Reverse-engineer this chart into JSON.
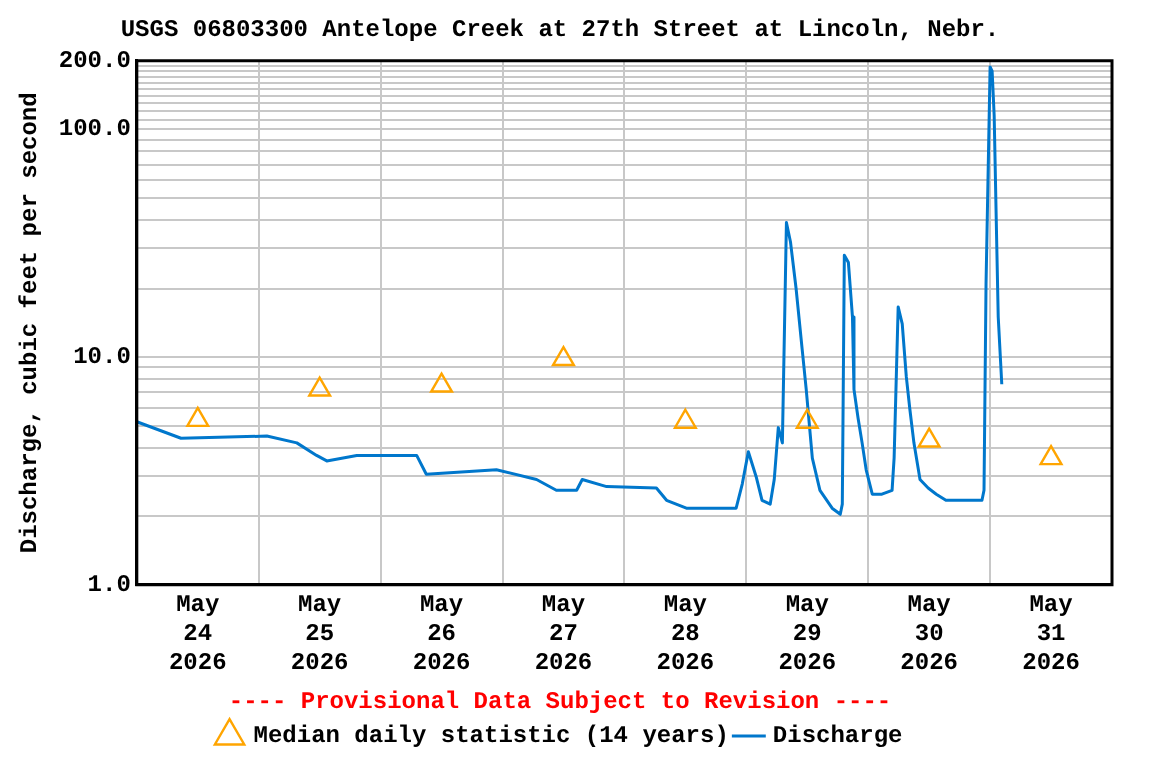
{
  "chart_data": {
    "type": "line",
    "title": "USGS 06803300 Antelope Creek at 27th Street at Lincoln, Nebr.",
    "ylabel": "Discharge, cubic feet per second",
    "annotations": [
      "---- Provisional Data Subject to Revision ----"
    ],
    "xlim": [
      "2026-05-24T00:00",
      "2026-06-01T00:00"
    ],
    "xticks": [
      {
        "value": "2026-05-24T00:00",
        "label": null
      },
      {
        "value": "2026-05-24T12:00",
        "label": "May\n24\n2026"
      },
      {
        "value": "2026-05-25T00:00",
        "label": null
      },
      {
        "value": "2026-05-25T12:00",
        "label": "May\n25\n2026"
      },
      {
        "value": "2026-05-26T00:00",
        "label": null
      },
      {
        "value": "2026-05-26T12:00",
        "label": "May\n26\n2026"
      },
      {
        "value": "2026-05-27T00:00",
        "label": null
      },
      {
        "value": "2026-05-27T12:00",
        "label": "May\n27\n2026"
      },
      {
        "value": "2026-05-28T00:00",
        "label": null
      },
      {
        "value": "2026-05-28T12:00",
        "label": "May\n28\n2026"
      },
      {
        "value": "2026-05-29T00:00",
        "label": null
      },
      {
        "value": "2026-05-29T12:00",
        "label": "May\n29\n2026"
      },
      {
        "value": "2026-05-30T00:00",
        "label": null
      },
      {
        "value": "2026-05-30T12:00",
        "label": "May\n30\n2026"
      },
      {
        "value": "2026-05-31T00:00",
        "label": null
      },
      {
        "value": "2026-05-31T12:00",
        "label": "May\n31\n2026"
      },
      {
        "value": "2026-06-01T00:00",
        "label": null
      }
    ],
    "ylim": [
      1,
      200
    ],
    "yticks": [
      {
        "value": 1,
        "label": "1.0"
      },
      {
        "value": 2,
        "label": null
      },
      {
        "value": 3,
        "label": null
      },
      {
        "value": 4,
        "label": null
      },
      {
        "value": 5,
        "label": null
      },
      {
        "value": 6,
        "label": null
      },
      {
        "value": 7,
        "label": null
      },
      {
        "value": 8,
        "label": null
      },
      {
        "value": 9,
        "label": null
      },
      {
        "value": 10,
        "label": "10.0"
      },
      {
        "value": 20,
        "label": null
      },
      {
        "value": 30,
        "label": null
      },
      {
        "value": 40,
        "label": null
      },
      {
        "value": 50,
        "label": null
      },
      {
        "value": 60,
        "label": null
      },
      {
        "value": 70,
        "label": null
      },
      {
        "value": 80,
        "label": null
      },
      {
        "value": 90,
        "label": null
      },
      {
        "value": 100,
        "label": "100.0"
      },
      {
        "value": 110,
        "label": null
      },
      {
        "value": 120,
        "label": null
      },
      {
        "value": 130,
        "label": null
      },
      {
        "value": 140,
        "label": null
      },
      {
        "value": 150,
        "label": null
      },
      {
        "value": 160,
        "label": null
      },
      {
        "value": 170,
        "label": null
      },
      {
        "value": 180,
        "label": null
      },
      {
        "value": 190,
        "label": null
      },
      {
        "value": 200,
        "label": "200.0"
      }
    ],
    "log": "y",
    "grid": true,
    "legend": "bottom",
    "series": [
      {
        "name": "Median daily statistic (14 years)",
        "type": "scatter",
        "marker": "triangle",
        "color": "#ffa500",
        "x": [
          "2026-05-24T12:00",
          "2026-05-25T12:00",
          "2026-05-26T12:00",
          "2026-05-27T12:00",
          "2026-05-28T12:00",
          "2026-05-29T12:00",
          "2026-05-30T12:00",
          "2026-05-31T12:00"
        ],
        "values": [
          5.3,
          7.2,
          7.5,
          9.8,
          5.2,
          5.2,
          4.3,
          3.6
        ]
      },
      {
        "name": "Discharge",
        "type": "line",
        "marker": "none",
        "color": "#0077cc",
        "x": [
          "2026-05-24T00:00",
          "2026-05-24T08:42",
          "2026-05-25T01:36",
          "2026-05-25T07:30",
          "2026-05-25T11:24",
          "2026-05-25T13:24",
          "2026-05-25T19:18",
          "2026-05-26T07:06",
          "2026-05-26T09:00",
          "2026-05-26T22:48",
          "2026-05-27T06:42",
          "2026-05-27T10:36",
          "2026-05-27T14:36",
          "2026-05-27T15:42",
          "2026-05-27T20:30",
          "2026-05-28T06:18",
          "2026-05-28T08:18",
          "2026-05-28T12:12",
          "2026-05-28T22:00",
          "2026-05-28T23:12",
          "2026-05-29T00:24",
          "2026-05-29T02:00",
          "2026-05-29T03:06",
          "2026-05-29T04:42",
          "2026-05-29T05:30",
          "2026-05-29T06:18",
          "2026-05-29T07:06",
          "2026-05-29T07:54",
          "2026-05-29T08:42",
          "2026-05-29T09:48",
          "2026-05-29T11:00",
          "2026-05-29T11:48",
          "2026-05-29T13:00",
          "2026-05-29T14:30",
          "2026-05-29T16:54",
          "2026-05-29T18:30",
          "2026-05-29T18:54",
          "2026-05-29T19:18",
          "2026-05-29T20:06",
          "2026-05-29T20:54",
          "2026-05-29T21:12",
          "2026-05-29T22:00",
          "2026-05-29T22:48",
          "2026-05-29T23:36",
          "2026-05-30T00:48",
          "2026-05-30T02:42",
          "2026-05-30T04:42",
          "2026-05-30T05:06",
          "2026-05-30T05:54",
          "2026-05-30T06:42",
          "2026-05-30T07:30",
          "2026-05-30T08:12",
          "2026-05-30T09:00",
          "2026-05-30T10:12",
          "2026-05-30T11:48",
          "2026-05-30T13:24",
          "2026-05-30T15:18",
          "2026-05-30T22:24",
          "2026-05-30T22:48",
          "2026-05-30T23:12",
          "2026-05-31T00:00",
          "2026-05-31T00:24",
          "2026-05-31T00:48",
          "2026-05-31T01:12",
          "2026-05-31T01:36",
          "2026-05-31T02:18"
        ],
        "values": [
          5.2,
          4.4,
          4.5,
          4.2,
          3.7,
          3.5,
          3.7,
          3.7,
          3.06,
          3.2,
          2.9,
          2.6,
          2.6,
          2.9,
          2.7,
          2.66,
          2.35,
          2.17,
          2.17,
          2.77,
          3.84,
          2.95,
          2.35,
          2.26,
          2.9,
          4.9,
          4.2,
          39,
          32,
          20,
          10.8,
          7.2,
          3.6,
          2.6,
          2.17,
          2.04,
          2.26,
          28,
          26,
          15,
          7.2,
          5.4,
          4.2,
          3.2,
          2.5,
          2.5,
          2.6,
          3.6,
          16.6,
          14,
          8.2,
          5.9,
          4.2,
          2.9,
          2.66,
          2.5,
          2.35,
          2.35,
          2.6,
          21,
          188,
          180,
          115,
          41,
          15,
          7.6
        ]
      }
    ]
  }
}
